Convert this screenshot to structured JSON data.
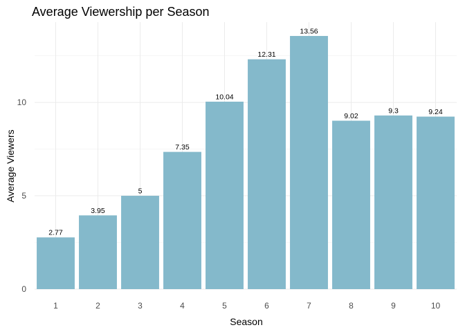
{
  "chart_data": {
    "type": "bar",
    "title": "Average Viewership per Season",
    "xlabel": "Season",
    "ylabel": "Average Viewers",
    "categories": [
      "1",
      "2",
      "3",
      "4",
      "5",
      "6",
      "7",
      "8",
      "9",
      "10"
    ],
    "values": [
      2.77,
      3.95,
      5,
      7.35,
      10.04,
      12.31,
      13.56,
      9.02,
      9.3,
      9.24
    ],
    "data_labels": [
      "2.77",
      "3.95",
      "5",
      "7.35",
      "10.04",
      "12.31",
      "13.56",
      "9.02",
      "9.3",
      "9.24"
    ],
    "yticks": [
      0,
      5,
      10
    ],
    "ytick_labels": [
      "0",
      "5",
      "10"
    ],
    "ylim": [
      0,
      14.3
    ],
    "grid": true,
    "legend": "none",
    "bar_color": "#84b9cb"
  }
}
